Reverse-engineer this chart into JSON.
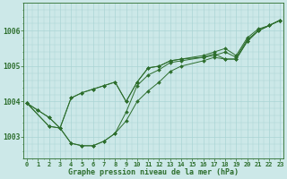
{
  "xlabel": "Graphe pression niveau de la mer (hPa)",
  "bg_color": "#cce8e8",
  "grid_color": "#aad4d4",
  "line_color": "#2d6e2d",
  "ylim": [
    1002.4,
    1006.8
  ],
  "xlim": [
    -0.3,
    23.3
  ],
  "yticks": [
    1003,
    1004,
    1005,
    1006
  ],
  "series": [
    {
      "x": [
        0,
        1,
        2,
        3,
        4,
        5,
        6,
        7,
        8,
        9,
        10,
        11,
        12,
        13,
        14,
        16,
        17,
        18,
        19,
        20,
        21,
        22,
        23
      ],
      "y": [
        1003.95,
        1003.75,
        1003.55,
        1003.25,
        1002.82,
        1002.75,
        1002.75,
        1002.88,
        1003.1,
        1003.45,
        1004.0,
        1004.3,
        1004.55,
        1004.85,
        1005.0,
        1005.15,
        1005.25,
        1005.2,
        1005.2,
        1005.7,
        1006.0,
        1006.15,
        1006.3
      ]
    },
    {
      "x": [
        0,
        1,
        2,
        3,
        4,
        5,
        6,
        7,
        8,
        9,
        10,
        11,
        12,
        13,
        14,
        16,
        17,
        18,
        19,
        20,
        21,
        22,
        23
      ],
      "y": [
        1003.95,
        1003.75,
        1003.55,
        1003.25,
        1002.82,
        1002.75,
        1002.75,
        1002.88,
        1003.1,
        1003.7,
        1004.45,
        1004.75,
        1004.9,
        1005.1,
        1005.15,
        1005.25,
        1005.35,
        1005.2,
        1005.2,
        1005.7,
        1006.0,
        1006.15,
        1006.3
      ]
    },
    {
      "x": [
        0,
        2,
        3,
        4,
        5,
        6,
        7,
        8,
        9,
        10,
        11,
        12,
        13,
        14,
        16,
        17,
        18,
        19,
        20,
        21,
        22,
        23
      ],
      "y": [
        1003.95,
        1003.3,
        1003.25,
        1004.1,
        1004.25,
        1004.35,
        1004.45,
        1004.55,
        1004.0,
        1004.55,
        1004.95,
        1005.0,
        1005.15,
        1005.2,
        1005.25,
        1005.3,
        1005.4,
        1005.25,
        1005.75,
        1006.0,
        1006.15,
        1006.3
      ]
    },
    {
      "x": [
        0,
        2,
        3,
        4,
        5,
        6,
        7,
        8,
        9,
        10,
        11,
        12,
        13,
        14,
        16,
        17,
        18,
        19,
        20,
        21,
        22,
        23
      ],
      "y": [
        1003.95,
        1003.3,
        1003.25,
        1004.1,
        1004.25,
        1004.35,
        1004.45,
        1004.55,
        1004.0,
        1004.55,
        1004.95,
        1005.0,
        1005.15,
        1005.2,
        1005.3,
        1005.4,
        1005.5,
        1005.3,
        1005.8,
        1006.05,
        1006.15,
        1006.3
      ]
    }
  ],
  "xlabel_fontsize": 6.0,
  "ytick_fontsize": 5.8,
  "xtick_fontsize": 5.0
}
